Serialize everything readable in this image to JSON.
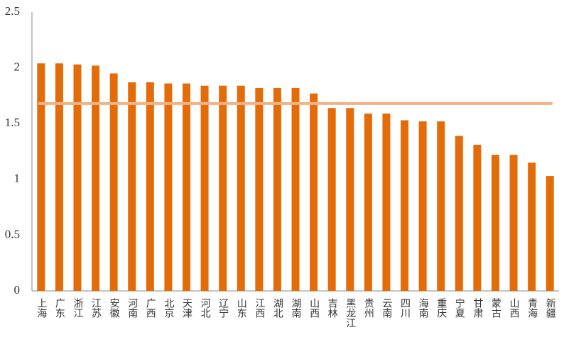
{
  "chart_data": {
    "type": "bar",
    "categories": [
      "上海",
      "广东",
      "浙江",
      "江苏",
      "安徽",
      "河南",
      "广西",
      "北京",
      "天津",
      "河北",
      "辽宁",
      "山东",
      "江西",
      "湖北",
      "湖南",
      "山西",
      "吉林",
      "黑龙江",
      "贵州",
      "云南",
      "四川",
      "海南",
      "重庆",
      "宁夏",
      "甘肃",
      "蒙古",
      "山西",
      "青海",
      "新疆"
    ],
    "values": [
      2.04,
      2.04,
      2.03,
      2.02,
      1.95,
      1.87,
      1.87,
      1.86,
      1.86,
      1.84,
      1.84,
      1.84,
      1.82,
      1.82,
      1.82,
      1.77,
      1.64,
      1.64,
      1.59,
      1.59,
      1.53,
      1.52,
      1.52,
      1.39,
      1.31,
      1.22,
      1.22,
      1.15,
      1.03
    ],
    "color": "#e36c09",
    "reference_line": 1.68,
    "reference_color": "#f4b183",
    "ylim": [
      0,
      2.5
    ],
    "yticks": [
      0,
      0.5,
      1,
      1.5,
      2,
      2.5
    ],
    "grid": false
  }
}
